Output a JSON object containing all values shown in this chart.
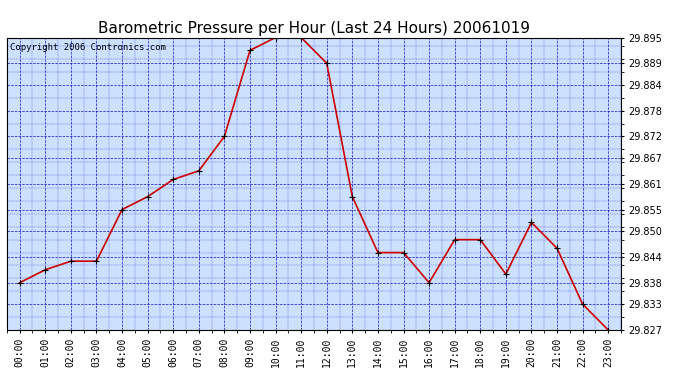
{
  "title": "Barometric Pressure per Hour (Last 24 Hours) 20061019",
  "copyright": "Copyright 2006 Contronics.com",
  "x_labels": [
    "00:00",
    "01:00",
    "02:00",
    "03:00",
    "04:00",
    "05:00",
    "06:00",
    "07:00",
    "08:00",
    "09:00",
    "10:00",
    "11:00",
    "12:00",
    "13:00",
    "14:00",
    "15:00",
    "16:00",
    "17:00",
    "18:00",
    "19:00",
    "20:00",
    "21:00",
    "22:00",
    "23:00"
  ],
  "y_values": [
    29.838,
    29.841,
    29.843,
    29.843,
    29.855,
    29.858,
    29.862,
    29.864,
    29.872,
    29.892,
    29.895,
    29.895,
    29.889,
    29.858,
    29.845,
    29.845,
    29.838,
    29.848,
    29.848,
    29.84,
    29.852,
    29.846,
    29.833,
    29.827
  ],
  "ylim_min": 29.827,
  "ylim_max": 29.895,
  "yticks": [
    29.827,
    29.833,
    29.838,
    29.844,
    29.85,
    29.855,
    29.861,
    29.867,
    29.872,
    29.878,
    29.884,
    29.889,
    29.895
  ],
  "line_color": "#cc0000",
  "marker_color": "#000000",
  "fig_bg_color": "#ffffff",
  "plot_bg_color": "#cce0ff",
  "grid_color": "#0000bb",
  "title_fontsize": 11,
  "tick_fontsize": 7,
  "copyright_fontsize": 6.5
}
